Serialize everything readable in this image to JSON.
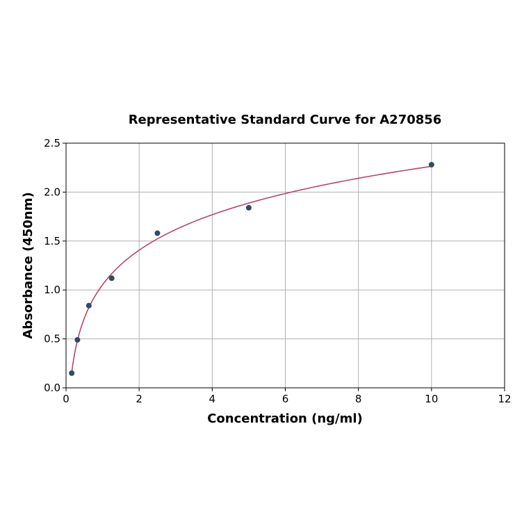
{
  "chart_data": {
    "type": "scatter",
    "title": "Representative Standard Curve for A270856",
    "xlabel": "Concentration (ng/ml)",
    "ylabel": "Absorbance (450nm)",
    "xlim": [
      0,
      12
    ],
    "ylim": [
      0,
      2.5
    ],
    "xticks": [
      "0",
      "2",
      "4",
      "6",
      "8",
      "10",
      "12"
    ],
    "yticks": [
      "0.0",
      "0.5",
      "1.0",
      "1.5",
      "2.0",
      "2.5"
    ],
    "grid": true,
    "points": [
      {
        "x": 0.156,
        "y": 0.15
      },
      {
        "x": 0.312,
        "y": 0.49
      },
      {
        "x": 0.625,
        "y": 0.84
      },
      {
        "x": 1.25,
        "y": 1.12
      },
      {
        "x": 2.5,
        "y": 1.58
      },
      {
        "x": 5.0,
        "y": 1.84
      },
      {
        "x": 10.0,
        "y": 2.28
      }
    ],
    "fit": {
      "type": "curve",
      "x_range": [
        0.156,
        10.0
      ]
    },
    "colors": {
      "point": "#2f4a6b",
      "fit_line": "#b5476a",
      "grid": "#b0b0b0"
    }
  }
}
